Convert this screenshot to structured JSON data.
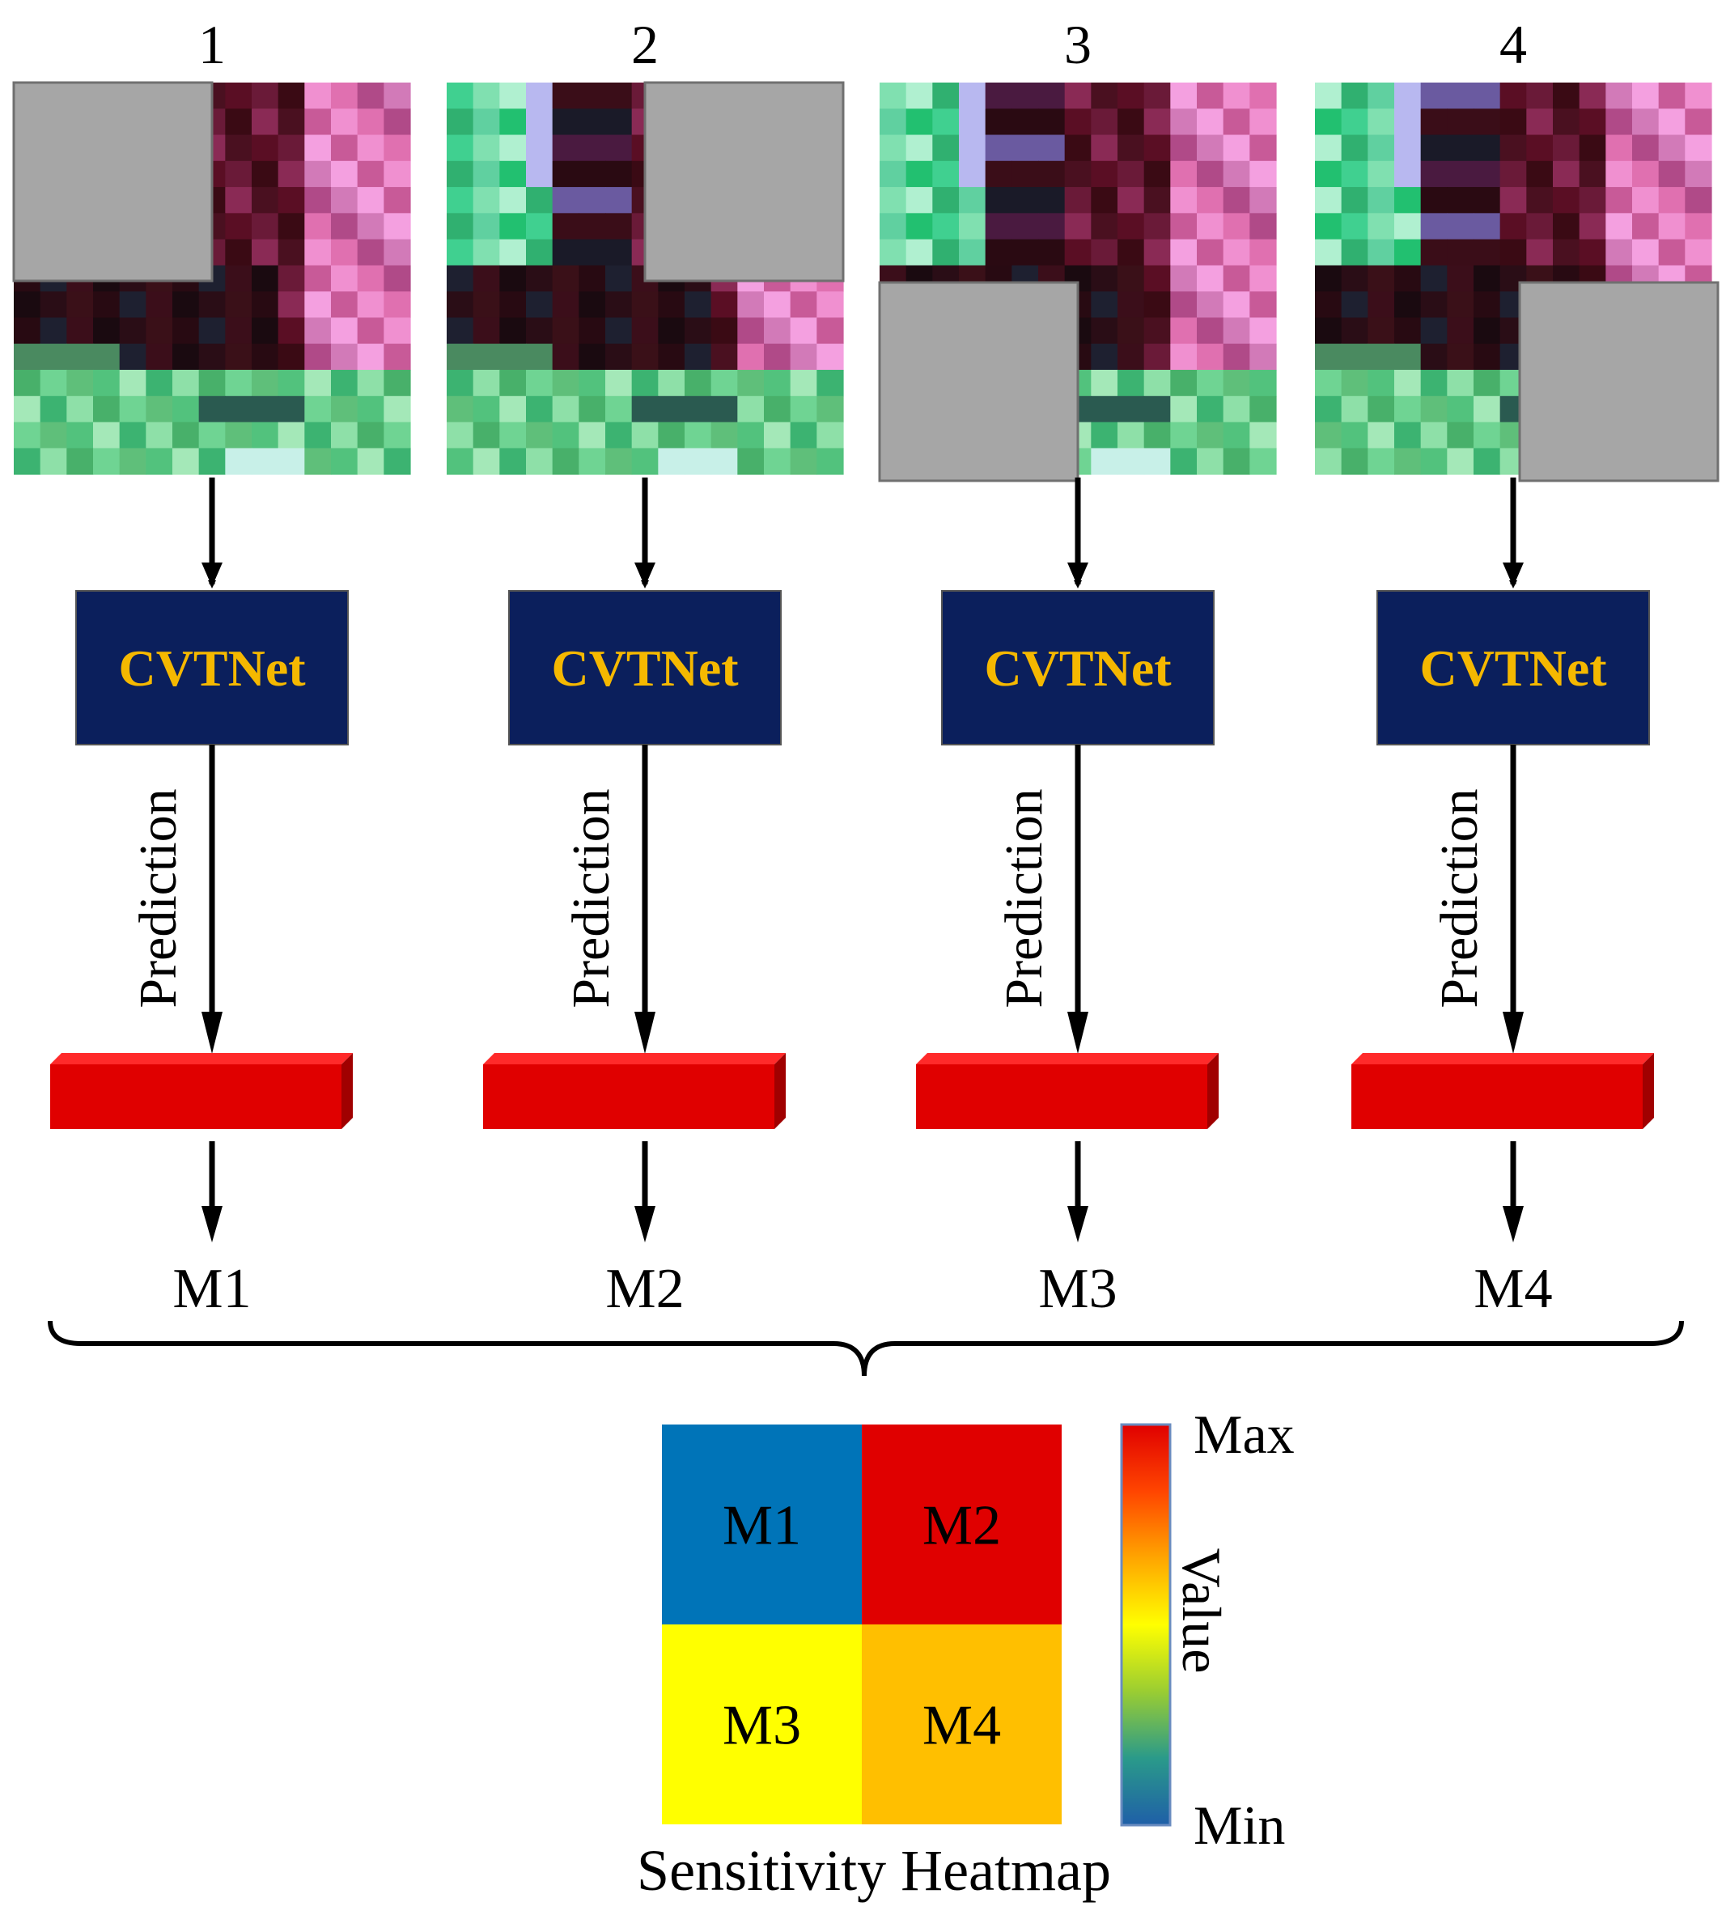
{
  "panels": [
    {
      "index_label": "1",
      "occluded_quadrant": "top-left",
      "network_label": "CVTNet",
      "arrow_label": "Prediction",
      "output_label": "M1"
    },
    {
      "index_label": "2",
      "occluded_quadrant": "top-right",
      "network_label": "CVTNet",
      "arrow_label": "Prediction",
      "output_label": "M2"
    },
    {
      "index_label": "3",
      "occluded_quadrant": "bottom-left",
      "network_label": "CVTNet",
      "arrow_label": "Prediction",
      "output_label": "M3"
    },
    {
      "index_label": "4",
      "occluded_quadrant": "bottom-right",
      "network_label": "CVTNet",
      "arrow_label": "Prediction",
      "output_label": "M4"
    }
  ],
  "heatmap": {
    "title": "Sensitivity Heatmap",
    "cells": [
      {
        "label": "M1",
        "color": "#0074b8"
      },
      {
        "label": "M2",
        "color": "#e00000"
      },
      {
        "label": "M3",
        "color": "#ffff00"
      },
      {
        "label": "M4",
        "color": "#ffbf00"
      }
    ]
  },
  "colorbar": {
    "max_label": "Max",
    "min_label": "Min",
    "axis_label": "Value",
    "stops": [
      "#1f5fa8",
      "#2a9a8a",
      "#9acd32",
      "#ffff00",
      "#ffa500",
      "#ff4500",
      "#e00000"
    ]
  },
  "colors": {
    "network_box": "#0b1f5c",
    "network_text": "#f5b800",
    "output_bar": "#e00000",
    "occlusion_mask": "#a6a6a6"
  }
}
